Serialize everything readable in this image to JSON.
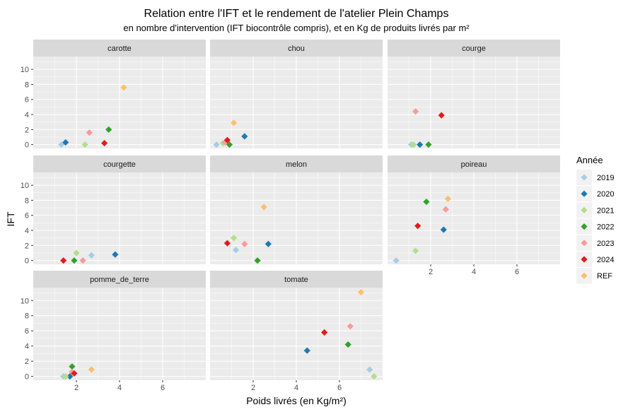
{
  "chart_data": {
    "type": "scatter",
    "title": "Relation entre l'IFT et le rendement de l'atelier Plein Champs",
    "subtitle": "en nombre d'intervention (IFT biocontrôle compris), et en Kg de produits livrés par m²",
    "xlabel": "Poids livrés (en Kg/m²)",
    "ylabel": "IFT",
    "xlim": [
      0,
      8.0
    ],
    "ylim": [
      -0.5,
      11.7
    ],
    "x_ticks": [
      2,
      4,
      6
    ],
    "y_ticks": [
      0,
      2,
      4,
      6,
      8,
      10
    ],
    "grid": true,
    "legend": {
      "title": "Année",
      "position": "right",
      "entries": [
        {
          "label": "2019",
          "color": "#A6CEE3"
        },
        {
          "label": "2020",
          "color": "#1F78B4"
        },
        {
          "label": "2021",
          "color": "#B2DF8A"
        },
        {
          "label": "2022",
          "color": "#33A02C"
        },
        {
          "label": "2023",
          "color": "#FB9A99"
        },
        {
          "label": "2024",
          "color": "#E31A1C"
        },
        {
          "label": "REF",
          "color": "#FDBF6F"
        }
      ]
    },
    "facets": [
      {
        "name": "carotte",
        "points": [
          {
            "year": "2019",
            "x": 1.3,
            "y": 0.0
          },
          {
            "year": "2020",
            "x": 1.5,
            "y": 0.3
          },
          {
            "year": "2021",
            "x": 2.4,
            "y": 0.0
          },
          {
            "year": "2022",
            "x": 3.5,
            "y": 2.0
          },
          {
            "year": "2023",
            "x": 2.6,
            "y": 1.6
          },
          {
            "year": "2024",
            "x": 3.3,
            "y": 0.2
          },
          {
            "year": "REF",
            "x": 4.2,
            "y": 7.6
          }
        ]
      },
      {
        "name": "chou",
        "points": [
          {
            "year": "2019",
            "x": 0.3,
            "y": 0.0
          },
          {
            "year": "2020",
            "x": 1.6,
            "y": 1.1
          },
          {
            "year": "2021",
            "x": 0.6,
            "y": 0.2
          },
          {
            "year": "2022",
            "x": 0.9,
            "y": 0.0
          },
          {
            "year": "2023",
            "x": 0.7,
            "y": 0.3
          },
          {
            "year": "2024",
            "x": 0.8,
            "y": 0.6
          },
          {
            "year": "REF",
            "x": 1.1,
            "y": 2.9
          }
        ]
      },
      {
        "name": "courge",
        "points": [
          {
            "year": "2019",
            "x": 1.1,
            "y": 0.0
          },
          {
            "year": "2020",
            "x": 1.5,
            "y": 0.0
          },
          {
            "year": "2021",
            "x": 1.2,
            "y": 0.0
          },
          {
            "year": "2022",
            "x": 1.9,
            "y": 0.0
          },
          {
            "year": "2023",
            "x": 1.3,
            "y": 4.4
          },
          {
            "year": "2024",
            "x": 2.5,
            "y": 3.9
          }
        ]
      },
      {
        "name": "courgette",
        "points": [
          {
            "year": "2019",
            "x": 2.7,
            "y": 0.7
          },
          {
            "year": "2020",
            "x": 3.8,
            "y": 0.8
          },
          {
            "year": "2021",
            "x": 2.0,
            "y": 1.0
          },
          {
            "year": "2022",
            "x": 1.9,
            "y": 0.0
          },
          {
            "year": "2023",
            "x": 2.3,
            "y": 0.0
          },
          {
            "year": "2024",
            "x": 1.4,
            "y": 0.0
          }
        ]
      },
      {
        "name": "melon",
        "points": [
          {
            "year": "2019",
            "x": 1.2,
            "y": 1.4
          },
          {
            "year": "2020",
            "x": 2.7,
            "y": 2.2
          },
          {
            "year": "2021",
            "x": 1.1,
            "y": 3.0
          },
          {
            "year": "2022",
            "x": 2.2,
            "y": 0.0
          },
          {
            "year": "2023",
            "x": 1.6,
            "y": 2.2
          },
          {
            "year": "2024",
            "x": 0.8,
            "y": 2.3
          },
          {
            "year": "REF",
            "x": 2.5,
            "y": 7.1
          }
        ]
      },
      {
        "name": "poireau",
        "points": [
          {
            "year": "2019",
            "x": 0.4,
            "y": 0.0
          },
          {
            "year": "2020",
            "x": 2.6,
            "y": 4.1
          },
          {
            "year": "2021",
            "x": 1.3,
            "y": 1.3
          },
          {
            "year": "2022",
            "x": 1.8,
            "y": 7.8
          },
          {
            "year": "2023",
            "x": 2.7,
            "y": 6.8
          },
          {
            "year": "2024",
            "x": 1.4,
            "y": 4.6
          },
          {
            "year": "REF",
            "x": 2.8,
            "y": 8.2
          }
        ]
      },
      {
        "name": "pomme_de_terre",
        "points": [
          {
            "year": "2019",
            "x": 1.4,
            "y": 0.0
          },
          {
            "year": "2020",
            "x": 1.7,
            "y": 0.0
          },
          {
            "year": "2021",
            "x": 1.5,
            "y": 0.0
          },
          {
            "year": "2022",
            "x": 1.8,
            "y": 1.3
          },
          {
            "year": "2023",
            "x": 1.8,
            "y": 0.6
          },
          {
            "year": "2024",
            "x": 1.9,
            "y": 0.4
          },
          {
            "year": "REF",
            "x": 2.7,
            "y": 0.9
          }
        ]
      },
      {
        "name": "tomate",
        "points": [
          {
            "year": "2019",
            "x": 7.4,
            "y": 0.9
          },
          {
            "year": "2020",
            "x": 4.5,
            "y": 3.4
          },
          {
            "year": "2021",
            "x": 7.6,
            "y": 0.0
          },
          {
            "year": "2022",
            "x": 6.4,
            "y": 4.2
          },
          {
            "year": "2023",
            "x": 6.5,
            "y": 6.6
          },
          {
            "year": "2024",
            "x": 5.3,
            "y": 5.8
          },
          {
            "year": "REF",
            "x": 7.0,
            "y": 11.1
          }
        ]
      }
    ]
  }
}
